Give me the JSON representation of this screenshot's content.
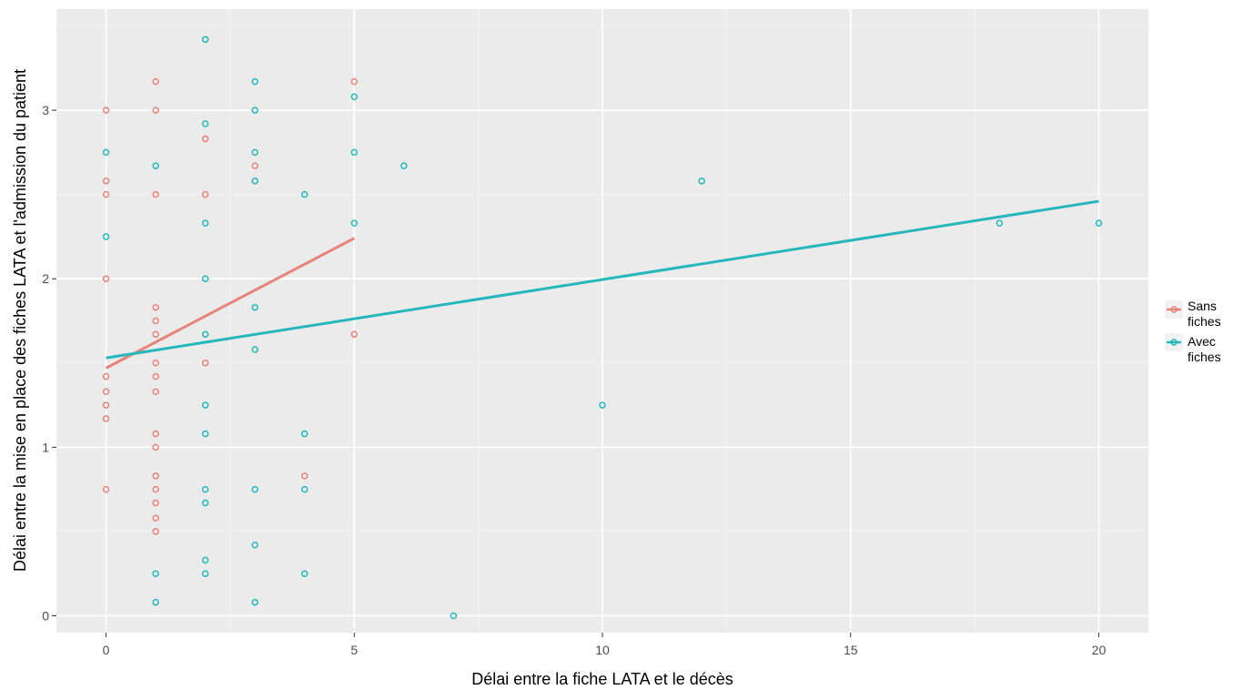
{
  "chart_data": {
    "type": "scatter",
    "title": "",
    "xlabel": "Délai entre la fiche LATA et le décès",
    "ylabel": "Délai entre la mise en place des fiches LATA et l'admission du patient",
    "xlim": [
      -1,
      21
    ],
    "ylim": [
      -0.1,
      3.6
    ],
    "x_ticks": [
      0,
      5,
      10,
      15,
      20
    ],
    "x_tick_labels": [
      "0",
      "5",
      "10",
      "15",
      "20"
    ],
    "y_ticks": [
      0,
      1,
      2,
      3
    ],
    "y_tick_labels": [
      "0",
      "1",
      "2",
      "3"
    ],
    "grid": true,
    "background": "#ebebeb",
    "legend_position": "right",
    "series": [
      {
        "name": "Sans fiches",
        "color": "#e7837a",
        "points": [
          [
            0,
            3.0
          ],
          [
            0,
            2.58
          ],
          [
            0,
            2.5
          ],
          [
            0,
            2.0
          ],
          [
            0,
            1.42
          ],
          [
            0,
            1.33
          ],
          [
            0,
            1.25
          ],
          [
            0,
            1.17
          ],
          [
            0,
            0.75
          ],
          [
            1,
            3.17
          ],
          [
            1,
            3.0
          ],
          [
            1,
            2.5
          ],
          [
            1,
            1.83
          ],
          [
            1,
            1.75
          ],
          [
            1,
            1.67
          ],
          [
            1,
            1.5
          ],
          [
            1,
            1.42
          ],
          [
            1,
            1.33
          ],
          [
            1,
            1.08
          ],
          [
            1,
            1.0
          ],
          [
            1,
            0.83
          ],
          [
            1,
            0.75
          ],
          [
            1,
            0.67
          ],
          [
            1,
            0.58
          ],
          [
            1,
            0.5
          ],
          [
            2,
            2.83
          ],
          [
            2,
            2.5
          ],
          [
            2,
            1.5
          ],
          [
            3,
            2.67
          ],
          [
            4,
            0.83
          ],
          [
            5,
            3.17
          ],
          [
            5,
            1.67
          ]
        ],
        "trend": [
          [
            0,
            1.47
          ],
          [
            5,
            2.24
          ]
        ]
      },
      {
        "name": "Avec fiches",
        "color": "#26b6bc",
        "points": [
          [
            0,
            2.75
          ],
          [
            0,
            2.25
          ],
          [
            1,
            2.67
          ],
          [
            1,
            0.25
          ],
          [
            1,
            0.08
          ],
          [
            2,
            3.42
          ],
          [
            2,
            2.92
          ],
          [
            2,
            2.33
          ],
          [
            2,
            2.0
          ],
          [
            2,
            1.67
          ],
          [
            2,
            1.25
          ],
          [
            2,
            1.08
          ],
          [
            2,
            0.75
          ],
          [
            2,
            0.67
          ],
          [
            2,
            0.33
          ],
          [
            2,
            0.25
          ],
          [
            3,
            3.17
          ],
          [
            3,
            3.0
          ],
          [
            3,
            2.75
          ],
          [
            3,
            2.58
          ],
          [
            3,
            1.83
          ],
          [
            3,
            1.58
          ],
          [
            3,
            0.75
          ],
          [
            3,
            0.42
          ],
          [
            3,
            0.08
          ],
          [
            4,
            2.5
          ],
          [
            4,
            1.08
          ],
          [
            4,
            0.75
          ],
          [
            4,
            0.25
          ],
          [
            5,
            3.08
          ],
          [
            5,
            2.75
          ],
          [
            5,
            2.33
          ],
          [
            6,
            2.67
          ],
          [
            7,
            0.0
          ],
          [
            10,
            1.25
          ],
          [
            12,
            2.58
          ],
          [
            18,
            2.33
          ],
          [
            20,
            2.33
          ]
        ],
        "trend": [
          [
            0,
            1.53
          ],
          [
            20,
            2.46
          ]
        ]
      }
    ]
  },
  "legend": {
    "items": [
      {
        "label_line1": "Sans",
        "label_line2": "fiches",
        "color": "#e7837a"
      },
      {
        "label_line1": "Avec",
        "label_line2": "fiches",
        "color": "#26b6bc"
      }
    ]
  }
}
